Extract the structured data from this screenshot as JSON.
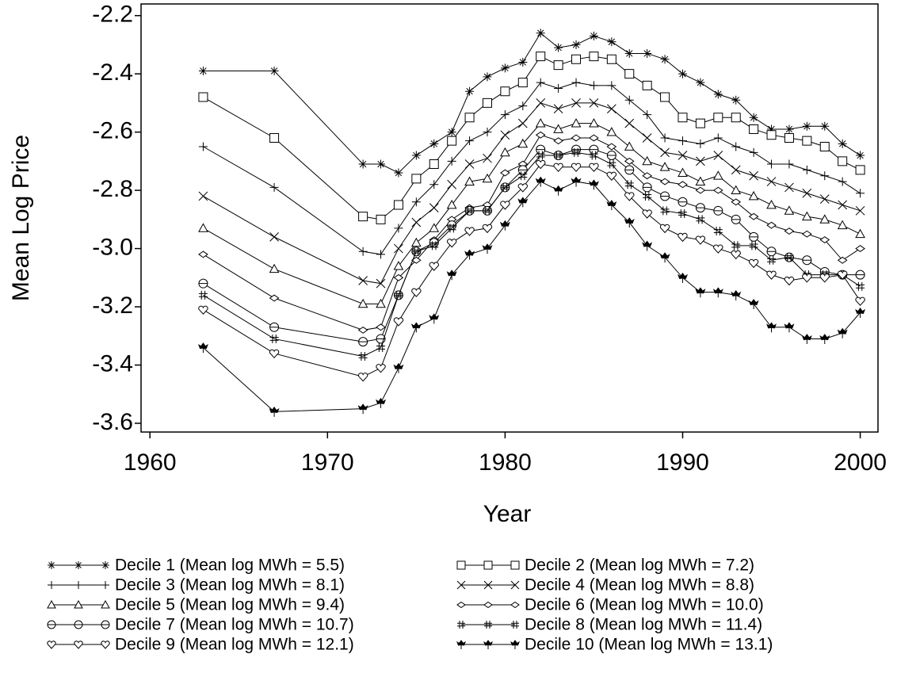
{
  "chart_data": {
    "type": "line",
    "x_label": "Year",
    "y_label": "Mean Log Price",
    "xlim": [
      1959.5,
      2001
    ],
    "ylim": [
      -3.63,
      -2.16
    ],
    "xticks": [
      1960,
      1970,
      1980,
      1990,
      2000
    ],
    "yticks": [
      -2.2,
      -2.4,
      -2.6,
      -2.8,
      {
        "value": -3,
        "label": "-3.0"
      },
      -3.2,
      -3.4,
      -3.6
    ],
    "x": [
      1963,
      1967,
      1972,
      1973,
      1974,
      1975,
      1976,
      1977,
      1978,
      1979,
      1980,
      1981,
      1982,
      1983,
      1984,
      1985,
      1986,
      1987,
      1988,
      1989,
      1990,
      1991,
      1992,
      1993,
      1994,
      1995,
      1996,
      1997,
      1998,
      1999,
      2000
    ],
    "series": [
      {
        "name": "Decile 1 (Mean log MWh =  5.5)",
        "color": "#000000",
        "marker": "star",
        "values": [
          -2.39,
          -2.39,
          -2.71,
          -2.71,
          -2.74,
          -2.68,
          -2.64,
          -2.6,
          -2.46,
          -2.41,
          -2.38,
          -2.36,
          -2.26,
          -2.31,
          -2.3,
          -2.27,
          -2.29,
          -2.33,
          -2.33,
          -2.35,
          -2.4,
          -2.43,
          -2.47,
          -2.49,
          -2.55,
          -2.59,
          -2.59,
          -2.58,
          -2.58,
          -2.64,
          -2.68
        ]
      },
      {
        "name": "Decile 2 (Mean log MWh =  7.2)",
        "color": "#000000",
        "marker": "square",
        "values": [
          -2.48,
          -2.62,
          -2.89,
          -2.9,
          -2.85,
          -2.76,
          -2.71,
          -2.63,
          -2.55,
          -2.5,
          -2.46,
          -2.43,
          -2.34,
          -2.37,
          -2.35,
          -2.34,
          -2.35,
          -2.4,
          -2.44,
          -2.48,
          -2.55,
          -2.57,
          -2.55,
          -2.55,
          -2.59,
          -2.61,
          -2.62,
          -2.63,
          -2.65,
          -2.7,
          -2.73
        ]
      },
      {
        "name": "Decile 3 (Mean log MWh =  8.1)",
        "color": "#000000",
        "marker": "plus",
        "values": [
          -2.65,
          -2.79,
          -3.01,
          -3.02,
          -2.93,
          -2.84,
          -2.78,
          -2.7,
          -2.63,
          -2.6,
          -2.54,
          -2.51,
          -2.43,
          -2.45,
          -2.43,
          -2.44,
          -2.44,
          -2.49,
          -2.54,
          -2.62,
          -2.63,
          -2.64,
          -2.62,
          -2.65,
          -2.67,
          -2.71,
          -2.71,
          -2.73,
          -2.75,
          -2.77,
          -2.81
        ]
      },
      {
        "name": "Decile 4 (Mean log MWh =  8.8)",
        "color": "#000000",
        "marker": "x",
        "values": [
          -2.82,
          -2.96,
          -3.11,
          -3.12,
          -3,
          -2.91,
          -2.86,
          -2.78,
          -2.71,
          -2.69,
          -2.61,
          -2.57,
          -2.5,
          -2.52,
          -2.5,
          -2.5,
          -2.52,
          -2.57,
          -2.62,
          -2.67,
          -2.68,
          -2.7,
          -2.68,
          -2.73,
          -2.75,
          -2.77,
          -2.79,
          -2.81,
          -2.83,
          -2.85,
          -2.87
        ]
      },
      {
        "name": "Decile 5 (Mean log MWh =  9.4)",
        "color": "#000000",
        "marker": "triangle",
        "values": [
          -2.93,
          -3.07,
          -3.19,
          -3.19,
          -3.06,
          -2.98,
          -2.93,
          -2.85,
          -2.77,
          -2.76,
          -2.67,
          -2.64,
          -2.57,
          -2.59,
          -2.57,
          -2.57,
          -2.6,
          -2.65,
          -2.7,
          -2.72,
          -2.74,
          -2.77,
          -2.75,
          -2.8,
          -2.82,
          -2.85,
          -2.87,
          -2.89,
          -2.9,
          -2.92,
          -2.95
        ]
      },
      {
        "name": "Decile 6 (Mean log MWh =  10.0)",
        "color": "#000000",
        "marker": "diamond",
        "values": [
          -3.02,
          -3.17,
          -3.28,
          -3.27,
          -3.1,
          -3.04,
          -2.97,
          -2.9,
          -2.86,
          -2.85,
          -2.74,
          -2.71,
          -2.61,
          -2.63,
          -2.62,
          -2.62,
          -2.65,
          -2.7,
          -2.75,
          -2.77,
          -2.78,
          -2.8,
          -2.8,
          -2.84,
          -2.89,
          -2.92,
          -2.94,
          -2.95,
          -2.97,
          -3.04,
          -3
        ]
      },
      {
        "name": "Decile 7 (Mean log MWh =  10.7)",
        "color": "#000000",
        "marker": "circle",
        "values": [
          -3.12,
          -3.27,
          -3.32,
          -3.31,
          -3.16,
          -3.01,
          -2.98,
          -2.92,
          -2.87,
          -2.87,
          -2.79,
          -2.73,
          -2.66,
          -2.68,
          -2.66,
          -2.66,
          -2.68,
          -2.73,
          -2.79,
          -2.82,
          -2.84,
          -2.86,
          -2.87,
          -2.9,
          -2.96,
          -3.01,
          -3.03,
          -3.04,
          -3.08,
          -3.09,
          -3.09
        ]
      },
      {
        "name": "Decile 8 (Mean log MWh =  11.4)",
        "color": "#000000",
        "marker": "hash",
        "values": [
          -3.16,
          -3.31,
          -3.37,
          -3.34,
          -3.16,
          -3.01,
          -2.99,
          -2.93,
          -2.87,
          -2.87,
          -2.79,
          -2.75,
          -2.68,
          -2.68,
          -2.67,
          -2.68,
          -2.71,
          -2.78,
          -2.82,
          -2.87,
          -2.88,
          -2.9,
          -2.94,
          -2.99,
          -2.99,
          -3.04,
          -3.03,
          -3.09,
          -3.09,
          -3.09,
          -3.13
        ]
      },
      {
        "name": "Decile 9 (Mean log MWh =  12.1)",
        "color": "#000000",
        "marker": "heart",
        "values": [
          -3.21,
          -3.36,
          -3.44,
          -3.41,
          -3.25,
          -3.15,
          -3.06,
          -2.98,
          -2.94,
          -2.93,
          -2.85,
          -2.79,
          -2.71,
          -2.72,
          -2.72,
          -2.72,
          -2.75,
          -2.82,
          -2.88,
          -2.93,
          -2.96,
          -2.97,
          -3,
          -3.02,
          -3.05,
          -3.09,
          -3.11,
          -3.1,
          -3.1,
          -3.09,
          -3.18
        ]
      },
      {
        "name": "Decile 10 (Mean log MWh =  13.1)",
        "color": "#000000",
        "marker": "club",
        "values": [
          -3.34,
          -3.56,
          -3.55,
          -3.53,
          -3.41,
          -3.27,
          -3.24,
          -3.09,
          -3.02,
          -3,
          -2.92,
          -2.84,
          -2.77,
          -2.8,
          -2.77,
          -2.78,
          -2.85,
          -2.91,
          -2.99,
          -3.03,
          -3.1,
          -3.15,
          -3.15,
          -3.16,
          -3.19,
          -3.27,
          -3.27,
          -3.31,
          -3.31,
          -3.29,
          -3.22
        ]
      }
    ],
    "legend_position": "bottom",
    "grid": false
  }
}
